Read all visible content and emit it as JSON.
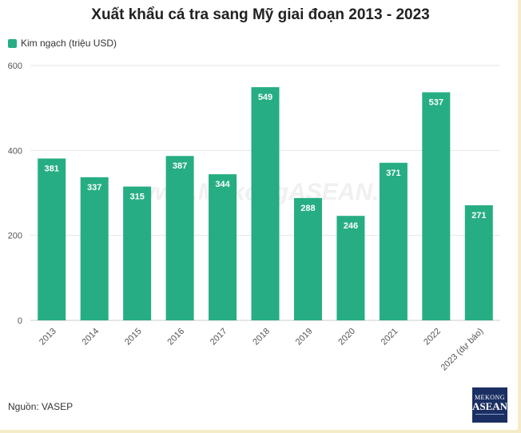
{
  "chart_data": {
    "type": "bar",
    "title": "Xuất khẩu cá tra sang Mỹ giai đoạn 2013 - 2023",
    "categories": [
      "2013",
      "2014",
      "2015",
      "2016",
      "2017",
      "2018",
      "2019",
      "2020",
      "2021",
      "2022",
      "2023 (dự báo)"
    ],
    "series": [
      {
        "name": "Kim ngạch (triệu USD)",
        "values": [
          381,
          337,
          315,
          387,
          344,
          549,
          288,
          246,
          371,
          537,
          271
        ]
      }
    ],
    "ylim": [
      0,
      600
    ],
    "yticks": [
      0,
      200,
      400,
      600
    ],
    "grid": true,
    "legend": "top-left",
    "data_labels": "inside-top",
    "colors": {
      "bar": "#26ad83",
      "grid": "#e6e6e6",
      "label": "#ffffff"
    }
  },
  "source": "Nguồn: VASEP",
  "watermark": "www.MekongASEAN.vn",
  "logo": {
    "line1": "MEKONG",
    "line2": "ASEAN"
  }
}
